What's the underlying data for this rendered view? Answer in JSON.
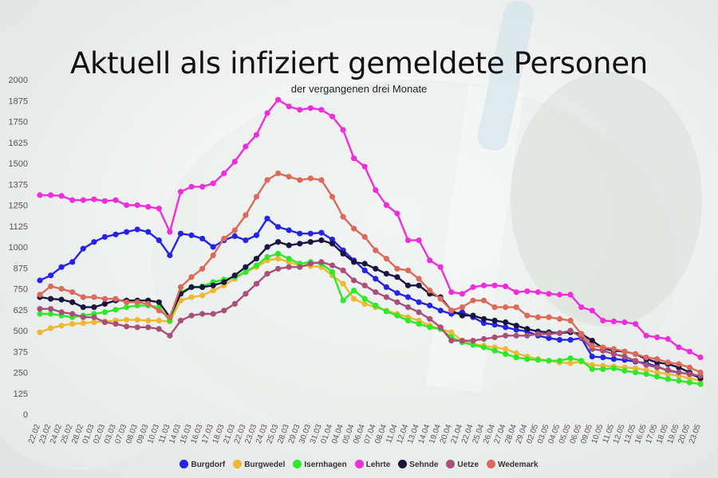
{
  "chart_data": {
    "type": "line",
    "title": "Aktuell als infiziert gemeldete Personen",
    "subtitle": "der vergangenen drei Monate",
    "xlabel": "",
    "ylabel": "",
    "ylim": [
      0,
      2000
    ],
    "y_ticks": [
      0,
      125,
      250,
      375,
      500,
      625,
      750,
      875,
      1000,
      1125,
      1250,
      1375,
      1500,
      1625,
      1750,
      1875,
      2000
    ],
    "grid": false,
    "legend_position": "bottom",
    "x_tick_labels": [
      "22.02",
      "23.02",
      "24.02",
      "25.02",
      "28.02",
      "01.03",
      "02.03",
      "03.03",
      "07.03",
      "08.03",
      "09.03",
      "10.03",
      "11.03",
      "14.03",
      "15.03",
      "16.03",
      "17.03",
      "18.03",
      "21.03",
      "22.03",
      "23.03",
      "24.03",
      "25.03",
      "28.03",
      "29.03",
      "30.03",
      "31.03",
      "01.04",
      "04.04",
      "05.04",
      "06.04",
      "07.04",
      "08.04",
      "11.04",
      "12.04",
      "13.04",
      "14.04",
      "19.04",
      "20.04",
      "21.04",
      "22.04",
      "25.04",
      "26.04",
      "27.04",
      "28.04",
      "29.04",
      "02.05",
      "03.05",
      "04.05",
      "05.05",
      "06.05",
      "09.05",
      "10.05",
      "11.05",
      "12.05",
      "13.05",
      "16.05",
      "17.05",
      "18.05",
      "19.05",
      "20.05",
      "23.05"
    ],
    "series": [
      {
        "name": "Burgdorf",
        "color": "#2424e8",
        "values": [
          800,
          830,
          880,
          910,
          990,
          1030,
          1060,
          1075,
          1090,
          1105,
          1090,
          1040,
          950,
          1080,
          1070,
          1050,
          1000,
          1040,
          1065,
          1040,
          1070,
          1170,
          1120,
          1100,
          1080,
          1080,
          1085,
          1045,
          980,
          920,
          860,
          810,
          760,
          725,
          700,
          670,
          650,
          620,
          600,
          610,
          580,
          545,
          535,
          520,
          505,
          495,
          470,
          455,
          445,
          445,
          455,
          345,
          340,
          330,
          325,
          315,
          305,
          285,
          260,
          250,
          240,
          220
        ]
      },
      {
        "name": "Burgwedel",
        "color": "#f0b830",
        "values": [
          490,
          515,
          530,
          540,
          545,
          550,
          555,
          560,
          565,
          565,
          560,
          560,
          555,
          680,
          700,
          710,
          740,
          770,
          810,
          850,
          880,
          920,
          930,
          910,
          890,
          885,
          880,
          830,
          780,
          690,
          660,
          640,
          620,
          600,
          580,
          560,
          530,
          510,
          490,
          440,
          420,
          410,
          400,
          390,
          365,
          345,
          330,
          320,
          310,
          305,
          315,
          295,
          290,
          285,
          280,
          275,
          265,
          250,
          240,
          230,
          215,
          200
        ]
      },
      {
        "name": "Isernhagen",
        "color": "#2ee82a",
        "values": [
          600,
          600,
          590,
          580,
          590,
          600,
          610,
          625,
          640,
          650,
          650,
          640,
          560,
          730,
          760,
          765,
          790,
          805,
          820,
          850,
          890,
          940,
          960,
          930,
          900,
          910,
          900,
          850,
          680,
          740,
          690,
          650,
          615,
          590,
          560,
          540,
          520,
          510,
          460,
          430,
          415,
          400,
          380,
          360,
          340,
          330,
          325,
          320,
          320,
          335,
          320,
          270,
          270,
          275,
          260,
          250,
          240,
          225,
          210,
          200,
          190,
          180
        ]
      },
      {
        "name": "Lehrte",
        "color": "#ee2edc",
        "values": [
          1310,
          1310,
          1305,
          1280,
          1280,
          1285,
          1275,
          1280,
          1250,
          1250,
          1240,
          1230,
          1090,
          1330,
          1360,
          1360,
          1380,
          1440,
          1510,
          1600,
          1670,
          1800,
          1880,
          1840,
          1820,
          1830,
          1820,
          1780,
          1700,
          1530,
          1480,
          1340,
          1250,
          1200,
          1040,
          1040,
          920,
          880,
          730,
          720,
          760,
          770,
          770,
          765,
          730,
          735,
          730,
          720,
          715,
          715,
          640,
          620,
          560,
          555,
          550,
          540,
          470,
          460,
          450,
          400,
          375,
          340
        ]
      },
      {
        "name": "Sehnde",
        "color": "#1a1440",
        "values": [
          700,
          690,
          685,
          670,
          640,
          640,
          660,
          680,
          680,
          680,
          680,
          670,
          580,
          720,
          760,
          760,
          770,
          790,
          830,
          880,
          930,
          1000,
          1030,
          1010,
          1020,
          1030,
          1040,
          1020,
          960,
          910,
          900,
          870,
          840,
          820,
          770,
          770,
          720,
          700,
          620,
          590,
          590,
          570,
          560,
          550,
          530,
          510,
          495,
          490,
          485,
          490,
          480,
          440,
          395,
          380,
          375,
          360,
          330,
          310,
          300,
          280,
          250,
          215
        ]
      },
      {
        "name": "Uetze",
        "color": "#a8507a",
        "values": [
          630,
          630,
          610,
          600,
          580,
          580,
          550,
          540,
          525,
          520,
          520,
          510,
          470,
          560,
          590,
          600,
          600,
          620,
          660,
          720,
          780,
          840,
          870,
          880,
          880,
          900,
          910,
          890,
          860,
          800,
          770,
          730,
          700,
          670,
          640,
          610,
          570,
          520,
          440,
          440,
          440,
          450,
          460,
          470,
          470,
          470,
          480,
          480,
          485,
          500,
          460,
          390,
          380,
          360,
          345,
          320,
          295,
          280,
          265,
          250,
          240,
          230
        ]
      },
      {
        "name": "Wedemark",
        "color": "#dc6a5a",
        "values": [
          715,
          765,
          750,
          730,
          700,
          700,
          690,
          690,
          670,
          670,
          660,
          620,
          580,
          760,
          820,
          870,
          950,
          1050,
          1100,
          1190,
          1300,
          1400,
          1440,
          1420,
          1400,
          1410,
          1400,
          1300,
          1180,
          1110,
          1060,
          980,
          930,
          870,
          860,
          810,
          740,
          690,
          620,
          640,
          680,
          680,
          640,
          640,
          640,
          590,
          580,
          580,
          570,
          560,
          480,
          410,
          400,
          390,
          375,
          360,
          340,
          330,
          310,
          300,
          280,
          250
        ]
      }
    ]
  }
}
